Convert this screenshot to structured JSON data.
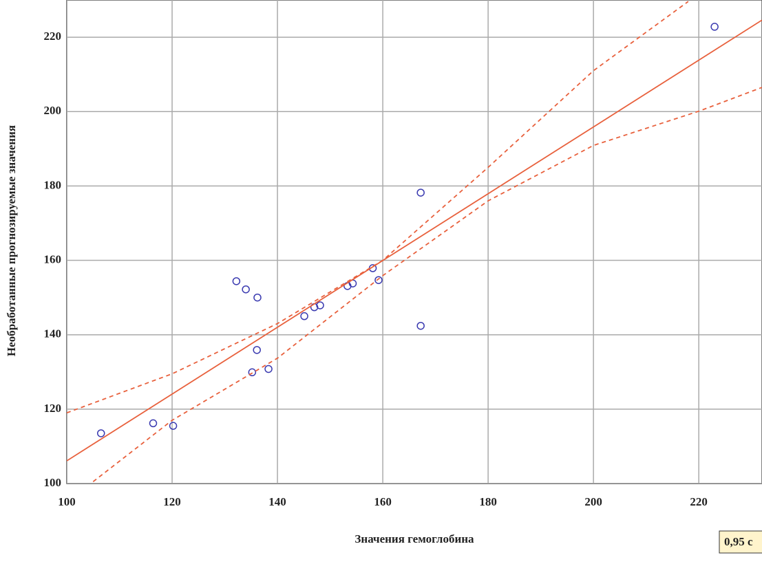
{
  "chart_data": {
    "type": "scatter",
    "x_label": "Значения гемоглобина",
    "y_label": "Необработанные прогнозируемые значения",
    "legend_text": "0,95 с",
    "xlim": [
      100,
      232
    ],
    "ylim": [
      100,
      230
    ],
    "xticks": [
      100,
      120,
      140,
      160,
      180,
      200,
      220
    ],
    "yticks": [
      100,
      120,
      140,
      160,
      180,
      200,
      220
    ],
    "grid": true,
    "series": [
      {
        "style": "points",
        "color": "#3a3ab0",
        "x": [
          106.5,
          116.4,
          120.2,
          132.2,
          134.0,
          136.2,
          136.1,
          135.2,
          138.3,
          145.1,
          147.0,
          148.1,
          153.3,
          154.3,
          158.1,
          159.2,
          167.2,
          167.2,
          223.0
        ],
        "values": [
          113.5,
          116.2,
          115.5,
          154.4,
          152.2,
          150.0,
          135.9,
          129.9,
          130.8,
          145.0,
          147.4,
          147.9,
          153.1,
          153.8,
          157.9,
          154.7,
          178.2,
          142.4,
          222.8
        ]
      },
      {
        "style": "line",
        "color": "#e8603c",
        "x": [
          100,
          232
        ],
        "values": [
          106.1,
          224.6
        ]
      },
      {
        "style": "dashed",
        "color": "#e8603c",
        "x": [
          100,
          120,
          140,
          160,
          180,
          200,
          218
        ],
        "values": [
          119,
          129.5,
          143,
          160,
          185,
          211,
          229.6
        ]
      },
      {
        "style": "dashed",
        "color": "#e8603c",
        "x": [
          105,
          120,
          140,
          160,
          180,
          200,
          220,
          232
        ],
        "values": [
          100.5,
          117,
          133.7,
          155.9,
          176,
          190.9,
          200.1,
          206.5
        ]
      }
    ]
  }
}
